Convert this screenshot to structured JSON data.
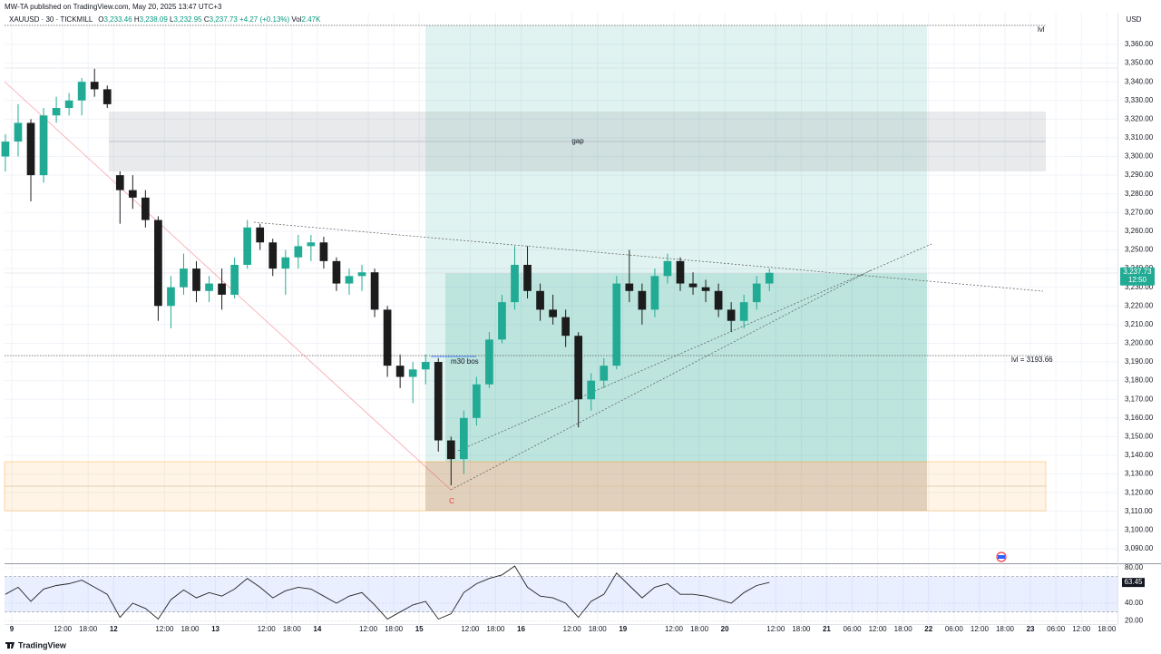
{
  "header": {
    "publisher": "MW-TA published on TradingView.com, May 20, 2025 13:47 UTC+3",
    "symbol": "XAUUSD · 30 · TICKMILL",
    "ohlc": [
      {
        "key": "O",
        "value": "3,233.46"
      },
      {
        "key": "H",
        "value": "3,238.09"
      },
      {
        "key": "L",
        "value": "3,232.95"
      },
      {
        "key": "C",
        "value": "3,237.73"
      }
    ],
    "change": "+4.27 (+0.13%)",
    "vol_key": "Vol",
    "vol": "2.47K"
  },
  "footer": "TradingView",
  "chart_data": [
    {
      "type": "candlestick",
      "y_label": "USD",
      "up_color": "#22ab94",
      "down_color": "#1c1c1c",
      "annotations": [
        "gap",
        "m30 bos",
        "C",
        "lvl",
        "lvl = 3193.66"
      ],
      "last_price_label": "3,237.73",
      "countdown": "12:50",
      "xlim": [
        -1.7,
        260.5
      ],
      "ylim": [
        3082.2,
        3370.2
      ],
      "grid": true,
      "x": [
        -1.5,
        1.5,
        4.5,
        7.5,
        10.5,
        13.5,
        16.5,
        19.5,
        22.5,
        25.5,
        28.5,
        31.5,
        34.5,
        37.5,
        40.5,
        43.5,
        46.5,
        49.5,
        52.5,
        55.5,
        58.5,
        61.5,
        64.5,
        67.5,
        70.5,
        73.5,
        76.5,
        79.5,
        82.5,
        85.5,
        88.5,
        91.5,
        94.5,
        97.5,
        100.5,
        103.5,
        106.5,
        109.5,
        112.5,
        115.5,
        118.5,
        121.5,
        124.5,
        127.5,
        130.5,
        133.5,
        136.5,
        139.5,
        142.5,
        145.5,
        148.5,
        151.5,
        154.5,
        157.5,
        160.5,
        163.5,
        166.5,
        169.5,
        172.5,
        175.5,
        178.5
      ],
      "open": [
        3300,
        3308,
        3318,
        3290,
        3322,
        3326,
        3330,
        3340,
        3336,
        3290,
        3282,
        3278,
        3266,
        3220,
        3230,
        3240,
        3228,
        3232,
        3226,
        3242,
        3262,
        3254,
        3240,
        3246,
        3252,
        3254,
        3244,
        3232,
        3236,
        3238,
        3218,
        3188,
        3182,
        3186,
        3190,
        3148,
        3138,
        3160,
        3178,
        3202,
        3222,
        3242,
        3228,
        3218,
        3214,
        3204,
        3170,
        3180,
        3188,
        3232,
        3228,
        3218,
        3236,
        3244,
        3232,
        3230,
        3228,
        3218,
        3212,
        3222,
        3232
      ],
      "high": [
        3312,
        3328,
        3320,
        3326,
        3332,
        3334,
        3342,
        3347,
        3338,
        3292,
        3290,
        3282,
        3268,
        3236,
        3248,
        3244,
        3236,
        3240,
        3246,
        3266,
        3264,
        3256,
        3250,
        3258,
        3258,
        3257,
        3246,
        3240,
        3242,
        3240,
        3220,
        3194,
        3190,
        3194,
        3192,
        3150,
        3164,
        3182,
        3206,
        3226,
        3252,
        3252,
        3232,
        3226,
        3218,
        3206,
        3184,
        3192,
        3236,
        3250,
        3232,
        3240,
        3248,
        3246,
        3238,
        3234,
        3232,
        3222,
        3226,
        3236,
        3240
      ],
      "low": [
        3292,
        3300,
        3276,
        3286,
        3318,
        3322,
        3322,
        3332,
        3326,
        3264,
        3272,
        3262,
        3212,
        3208,
        3226,
        3222,
        3222,
        3218,
        3224,
        3240,
        3250,
        3236,
        3226,
        3240,
        3244,
        3240,
        3228,
        3226,
        3228,
        3214,
        3182,
        3176,
        3168,
        3178,
        3142,
        3124,
        3130,
        3156,
        3176,
        3200,
        3218,
        3224,
        3212,
        3210,
        3198,
        3155,
        3164,
        3176,
        3186,
        3222,
        3210,
        3214,
        3232,
        3228,
        3226,
        3222,
        3214,
        3206,
        3208,
        3218,
        3228
      ],
      "close": [
        3308,
        3318,
        3290,
        3322,
        3326,
        3330,
        3340,
        3336,
        3328,
        3282,
        3278,
        3266,
        3220,
        3230,
        3240,
        3228,
        3232,
        3226,
        3242,
        3262,
        3254,
        3240,
        3246,
        3252,
        3254,
        3244,
        3232,
        3236,
        3238,
        3218,
        3188,
        3182,
        3186,
        3190,
        3148,
        3138,
        3160,
        3178,
        3202,
        3222,
        3242,
        3228,
        3218,
        3214,
        3204,
        3170,
        3180,
        3188,
        3232,
        3228,
        3218,
        3236,
        3244,
        3232,
        3230,
        3228,
        3218,
        3212,
        3222,
        3232,
        3237.73
      ],
      "yticks": [
        {
          "value": 3090,
          "label": "3,090.00"
        },
        {
          "value": 3100,
          "label": "3,100.00"
        },
        {
          "value": 3110,
          "label": "3,110.00"
        },
        {
          "value": 3120,
          "label": "3,120.00"
        },
        {
          "value": 3130,
          "label": "3,130.00"
        },
        {
          "value": 3140,
          "label": "3,140.00"
        },
        {
          "value": 3150,
          "label": "3,150.00"
        },
        {
          "value": 3160,
          "label": "3,160.00"
        },
        {
          "value": 3170,
          "label": "3,170.00"
        },
        {
          "value": 3180,
          "label": "3,180.00"
        },
        {
          "value": 3190,
          "label": "3,190.00"
        },
        {
          "value": 3200,
          "label": "3,200.00"
        },
        {
          "value": 3210,
          "label": "3,210.00"
        },
        {
          "value": 3220,
          "label": "3,220.00"
        },
        {
          "value": 3230,
          "label": "3,230.00"
        },
        {
          "value": 3240,
          "label": "3,240.00"
        },
        {
          "value": 3250,
          "label": "3,250.00"
        },
        {
          "value": 3260,
          "label": "3,260.00"
        },
        {
          "value": 3270,
          "label": "3,270.00"
        },
        {
          "value": 3280,
          "label": "3,280.00"
        },
        {
          "value": 3290,
          "label": "3,290.00"
        },
        {
          "value": 3300,
          "label": "3,300.00"
        },
        {
          "value": 3310,
          "label": "3,310.00"
        },
        {
          "value": 3320,
          "label": "3,320.00"
        },
        {
          "value": 3330,
          "label": "3,330.00"
        },
        {
          "value": 3340,
          "label": "3,340.00"
        },
        {
          "value": 3350,
          "label": "3,350.00"
        },
        {
          "value": 3360,
          "label": "3,360.00"
        }
      ],
      "xticks": [
        {
          "value": 0,
          "label": "9"
        },
        {
          "value": 12,
          "label": "12:00"
        },
        {
          "value": 18,
          "label": "18:00"
        },
        {
          "value": 24,
          "label": "12"
        },
        {
          "value": 36,
          "label": "12:00"
        },
        {
          "value": 42,
          "label": "18:00"
        },
        {
          "value": 48,
          "label": "13"
        },
        {
          "value": 60,
          "label": "12:00"
        },
        {
          "value": 66,
          "label": "18:00"
        },
        {
          "value": 72,
          "label": "14"
        },
        {
          "value": 84,
          "label": "12:00"
        },
        {
          "value": 90,
          "label": "18:00"
        },
        {
          "value": 96,
          "label": "15"
        },
        {
          "value": 108,
          "label": "12:00"
        },
        {
          "value": 114,
          "label": "18:00"
        },
        {
          "value": 120,
          "label": "16"
        },
        {
          "value": 132,
          "label": "12:00"
        },
        {
          "value": 138,
          "label": "18:00"
        },
        {
          "value": 144,
          "label": "19"
        },
        {
          "value": 156,
          "label": "12:00"
        },
        {
          "value": 162,
          "label": "18:00"
        },
        {
          "value": 168,
          "label": "20"
        },
        {
          "value": 180,
          "label": "12:00"
        },
        {
          "value": 186,
          "label": "18:00"
        },
        {
          "value": 192,
          "label": "21"
        },
        {
          "value": 198,
          "label": "06:00"
        },
        {
          "value": 204,
          "label": "12:00"
        },
        {
          "value": 210,
          "label": "18:00"
        },
        {
          "value": 216,
          "label": "22"
        },
        {
          "value": 222,
          "label": "06:00"
        },
        {
          "value": 228,
          "label": "12:00"
        },
        {
          "value": 234,
          "label": "18:00"
        },
        {
          "value": 240,
          "label": "23"
        },
        {
          "value": 246,
          "label": "06:00"
        },
        {
          "value": 252,
          "label": "12:00"
        },
        {
          "value": 258,
          "label": "18:00"
        }
      ]
    },
    {
      "type": "line",
      "color": "#222222",
      "band": [
        30,
        70
      ],
      "band_color": "#2962ff",
      "xlim": [
        -1.7,
        260.5
      ],
      "ylim": [
        16.4,
        84.1
      ],
      "x": [
        -1.5,
        1.5,
        4.5,
        7.5,
        10.5,
        13.5,
        16.5,
        19.5,
        22.5,
        25.5,
        28.5,
        31.5,
        34.5,
        37.5,
        40.5,
        43.5,
        46.5,
        49.5,
        52.5,
        55.5,
        58.5,
        61.5,
        64.5,
        67.5,
        70.5,
        73.5,
        76.5,
        79.5,
        82.5,
        85.5,
        88.5,
        91.5,
        94.5,
        97.5,
        100.5,
        103.5,
        106.5,
        109.5,
        112.5,
        115.5,
        118.5,
        121.5,
        124.5,
        127.5,
        130.5,
        133.5,
        136.5,
        139.5,
        142.5,
        145.5,
        148.5,
        151.5,
        154.5,
        157.5,
        160.5,
        163.5,
        166.5,
        169.5,
        172.5,
        175.5,
        178.5
      ],
      "values": [
        50,
        58,
        42,
        56,
        60,
        62,
        66,
        58,
        50,
        24,
        40,
        34,
        22,
        44,
        55,
        46,
        52,
        48,
        56,
        68,
        58,
        46,
        54,
        58,
        56,
        48,
        40,
        48,
        52,
        38,
        22,
        30,
        38,
        42,
        22,
        28,
        52,
        62,
        68,
        72,
        82,
        58,
        48,
        46,
        40,
        24,
        42,
        50,
        74,
        60,
        46,
        58,
        62,
        50,
        50,
        48,
        44,
        40,
        52,
        60,
        63.45
      ],
      "yticks": [
        {
          "value": 20,
          "label": "20.00"
        },
        {
          "value": 40,
          "label": "40.00"
        },
        {
          "value": 80,
          "label": "80.00"
        }
      ]
    }
  ]
}
